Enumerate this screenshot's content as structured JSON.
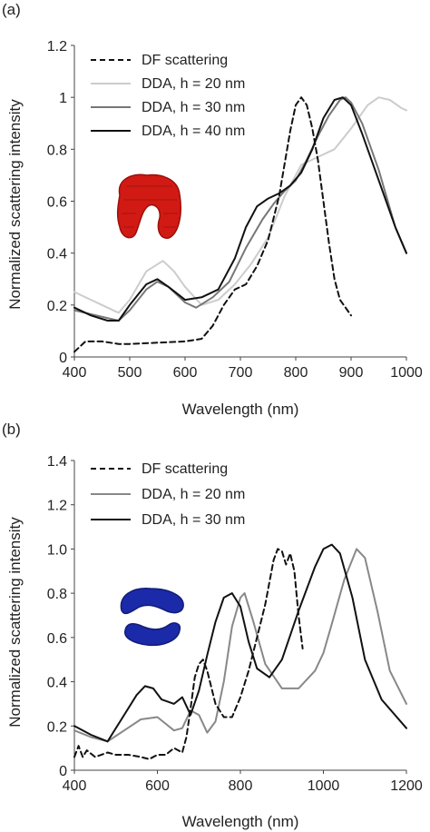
{
  "chart_data": [
    {
      "type": "line",
      "panel_label": "(a)",
      "xlabel": "Wavelength (nm)",
      "ylabel": "Normalized scattering intensity",
      "xlim": [
        400,
        1000
      ],
      "ylim": [
        0,
        1.2
      ],
      "xticks": [
        400,
        500,
        600,
        700,
        800,
        900,
        1000
      ],
      "yticks": [
        0,
        0.2,
        0.4,
        0.6,
        0.8,
        1,
        1.2
      ],
      "ytick_labels": [
        "0",
        "0.2",
        "0.4",
        "0.6",
        "0.8",
        "1",
        "1.2"
      ],
      "legend_position": "top-left",
      "grid": false,
      "inset_icon": "red-c-shaped-nanostructure",
      "inset_color": "#d11a14",
      "series": [
        {
          "name": "DF scattering",
          "color": "#111111",
          "style": "dashed",
          "x": [
            400,
            420,
            450,
            480,
            500,
            550,
            600,
            630,
            650,
            670,
            690,
            710,
            730,
            750,
            770,
            790,
            800,
            810,
            820,
            830,
            840,
            850,
            860,
            870,
            880,
            900
          ],
          "y": [
            0.02,
            0.06,
            0.06,
            0.05,
            0.05,
            0.055,
            0.06,
            0.07,
            0.12,
            0.2,
            0.26,
            0.28,
            0.35,
            0.45,
            0.62,
            0.87,
            0.97,
            1.0,
            0.97,
            0.88,
            0.76,
            0.6,
            0.44,
            0.3,
            0.22,
            0.16
          ]
        },
        {
          "name": "DDA, h = 20 nm",
          "color": "#cccccc",
          "style": "solid",
          "x": [
            400,
            430,
            460,
            480,
            500,
            530,
            560,
            580,
            600,
            630,
            660,
            690,
            720,
            750,
            780,
            810,
            840,
            870,
            900,
            930,
            950,
            970,
            990,
            1000
          ],
          "y": [
            0.25,
            0.22,
            0.19,
            0.17,
            0.22,
            0.33,
            0.37,
            0.33,
            0.27,
            0.2,
            0.22,
            0.28,
            0.36,
            0.46,
            0.62,
            0.74,
            0.77,
            0.8,
            0.88,
            0.97,
            1.0,
            0.99,
            0.96,
            0.95
          ]
        },
        {
          "name": "DDA, h = 30 nm",
          "color": "#777777",
          "style": "solid",
          "x": [
            400,
            440,
            480,
            500,
            530,
            550,
            570,
            600,
            620,
            650,
            680,
            710,
            740,
            760,
            780,
            800,
            820,
            840,
            860,
            880,
            890,
            900,
            920,
            950,
            980,
            1000
          ],
          "y": [
            0.18,
            0.16,
            0.14,
            0.18,
            0.26,
            0.29,
            0.27,
            0.21,
            0.19,
            0.23,
            0.29,
            0.42,
            0.53,
            0.59,
            0.64,
            0.68,
            0.76,
            0.85,
            0.93,
            0.99,
            1.0,
            0.98,
            0.9,
            0.72,
            0.5,
            0.4
          ]
        },
        {
          "name": "DDA, h = 40 nm",
          "color": "#111111",
          "style": "solid",
          "x": [
            400,
            430,
            460,
            480,
            500,
            530,
            550,
            570,
            600,
            630,
            660,
            690,
            710,
            730,
            750,
            770,
            790,
            810,
            830,
            850,
            870,
            885,
            900,
            920,
            950,
            980,
            1000
          ],
          "y": [
            0.19,
            0.16,
            0.14,
            0.14,
            0.2,
            0.28,
            0.3,
            0.27,
            0.22,
            0.23,
            0.26,
            0.38,
            0.5,
            0.58,
            0.61,
            0.63,
            0.66,
            0.71,
            0.8,
            0.92,
            0.99,
            1.0,
            0.97,
            0.86,
            0.68,
            0.5,
            0.4
          ]
        }
      ]
    },
    {
      "type": "line",
      "panel_label": "(b)",
      "xlabel": "Wavelength (nm)",
      "ylabel": "Normalized scattering intensity",
      "xlim": [
        400,
        1200
      ],
      "ylim": [
        0,
        1.4
      ],
      "xticks": [
        400,
        600,
        800,
        1000,
        1200
      ],
      "yticks": [
        0,
        0.2,
        0.4,
        0.6,
        0.8,
        1.0,
        1.2,
        1.4
      ],
      "ytick_labels": [
        "0",
        "0.2",
        "0.4",
        "0.6",
        "0.8",
        "1.0",
        "1.2",
        "1.4"
      ],
      "legend_position": "top-left",
      "grid": false,
      "inset_icon": "blue-split-ring-nanostructure",
      "inset_color": "#1b2aa8",
      "series": [
        {
          "name": "DF scattering",
          "color": "#111111",
          "style": "dashed",
          "x": [
            400,
            410,
            420,
            430,
            450,
            480,
            500,
            530,
            560,
            580,
            600,
            620,
            640,
            660,
            670,
            680,
            690,
            700,
            710,
            720,
            740,
            760,
            780,
            800,
            820,
            840,
            860,
            870,
            880,
            890,
            900,
            910,
            920,
            930,
            940,
            950
          ],
          "y": [
            0.06,
            0.11,
            0.06,
            0.09,
            0.06,
            0.08,
            0.07,
            0.07,
            0.06,
            0.05,
            0.07,
            0.07,
            0.1,
            0.08,
            0.15,
            0.28,
            0.42,
            0.48,
            0.5,
            0.45,
            0.3,
            0.24,
            0.24,
            0.33,
            0.45,
            0.6,
            0.75,
            0.85,
            0.95,
            1.0,
            0.99,
            0.93,
            0.98,
            0.9,
            0.7,
            0.55
          ]
        },
        {
          "name": "DDA, h = 20 nm",
          "color": "#888888",
          "style": "solid",
          "x": [
            400,
            440,
            480,
            520,
            560,
            600,
            620,
            640,
            660,
            680,
            700,
            720,
            740,
            760,
            780,
            800,
            810,
            830,
            860,
            900,
            940,
            980,
            1000,
            1020,
            1050,
            1080,
            1100,
            1130,
            1160,
            1200
          ],
          "y": [
            0.18,
            0.15,
            0.13,
            0.18,
            0.23,
            0.24,
            0.21,
            0.18,
            0.19,
            0.27,
            0.25,
            0.17,
            0.22,
            0.4,
            0.65,
            0.78,
            0.8,
            0.68,
            0.48,
            0.37,
            0.37,
            0.45,
            0.53,
            0.66,
            0.86,
            1.0,
            0.96,
            0.72,
            0.45,
            0.3
          ]
        },
        {
          "name": "DDA, h = 30 nm",
          "color": "#111111",
          "style": "solid",
          "x": [
            400,
            440,
            480,
            520,
            550,
            570,
            590,
            610,
            640,
            660,
            680,
            700,
            720,
            740,
            760,
            780,
            800,
            820,
            840,
            870,
            900,
            940,
            980,
            1000,
            1020,
            1040,
            1070,
            1100,
            1140,
            1200
          ],
          "y": [
            0.2,
            0.16,
            0.13,
            0.25,
            0.34,
            0.38,
            0.37,
            0.32,
            0.3,
            0.33,
            0.25,
            0.36,
            0.52,
            0.67,
            0.78,
            0.8,
            0.74,
            0.58,
            0.46,
            0.42,
            0.5,
            0.72,
            0.92,
            1.0,
            1.02,
            0.98,
            0.78,
            0.5,
            0.32,
            0.19
          ]
        }
      ]
    }
  ]
}
